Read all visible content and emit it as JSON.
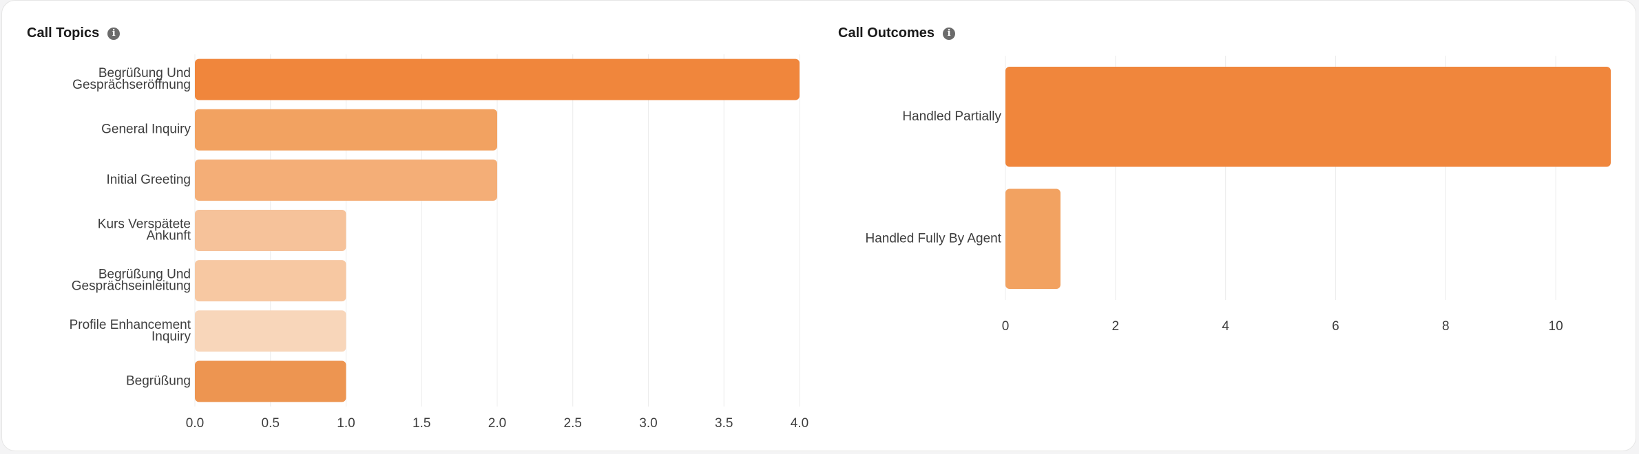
{
  "panels": [
    {
      "title": "Call Topics",
      "info_icon": "info-icon"
    },
    {
      "title": "Call Outcomes",
      "info_icon": "info-icon"
    }
  ],
  "chart_data": [
    {
      "type": "bar",
      "orientation": "horizontal",
      "title": "Call Topics",
      "categories": [
        [
          "Begrüßung Und",
          "Gesprächseröffnung"
        ],
        [
          "General Inquiry"
        ],
        [
          "Initial Greeting"
        ],
        [
          "Kurs Verspätete",
          "Ankunft"
        ],
        [
          "Begrüßung Und",
          "Gesprächseinleitung"
        ],
        [
          "Profile Enhancement",
          "Inquiry"
        ],
        [
          "Begrüßung"
        ]
      ],
      "values": [
        4,
        2,
        2,
        1,
        1,
        1,
        1
      ],
      "colors": [
        "#f0863c",
        "#f2a261",
        "#f4ae77",
        "#f6c29a",
        "#f7c8a2",
        "#f8d6ba",
        "#ed9551"
      ],
      "xlim": [
        0,
        4
      ],
      "xticks": [
        0,
        0.5,
        1,
        1.5,
        2,
        2.5,
        3,
        3.5,
        4
      ],
      "xtick_labels": [
        "0.0",
        "0.5",
        "1.0",
        "1.5",
        "2.0",
        "2.5",
        "3.0",
        "3.5",
        "4.0"
      ],
      "grid": true
    },
    {
      "type": "bar",
      "orientation": "horizontal",
      "title": "Call Outcomes",
      "categories": [
        [
          "Handled Partially"
        ],
        [
          "Handled Fully By Agent"
        ]
      ],
      "values": [
        11,
        1
      ],
      "colors": [
        "#f0863c",
        "#f2a261"
      ],
      "xlim": [
        0,
        11
      ],
      "xticks": [
        0,
        2,
        4,
        6,
        8,
        10
      ],
      "xtick_labels": [
        "0",
        "2",
        "4",
        "6",
        "8",
        "10"
      ],
      "grid": true
    }
  ]
}
